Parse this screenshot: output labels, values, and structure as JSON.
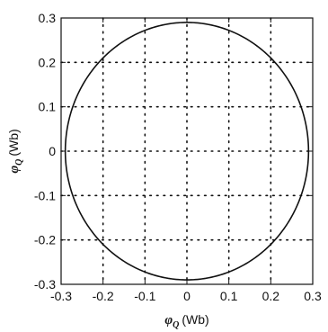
{
  "chart_data": {
    "type": "line",
    "title": "",
    "xlabel": {
      "symbol": "φ",
      "subscript": "Q",
      "unit": "(Wb)"
    },
    "ylabel": {
      "symbol": "φ",
      "subscript": "Q",
      "unit": "(Wb)"
    },
    "xlim": [
      -0.3,
      0.3
    ],
    "ylim": [
      -0.3,
      0.3
    ],
    "xticks": [
      "-0.3",
      "-0.2",
      "-0.1",
      "0",
      "0.1",
      "0.2",
      "0.3"
    ],
    "yticks": [
      "-0.3",
      "-0.2",
      "-0.1",
      "0",
      "0.1",
      "0.2",
      "0.3"
    ],
    "grid": true,
    "grid_style": "dotted",
    "legend": "none",
    "series": [
      {
        "shape": "circle",
        "center": [
          0,
          0
        ],
        "radius": 0.29,
        "color": "#111111"
      }
    ]
  }
}
